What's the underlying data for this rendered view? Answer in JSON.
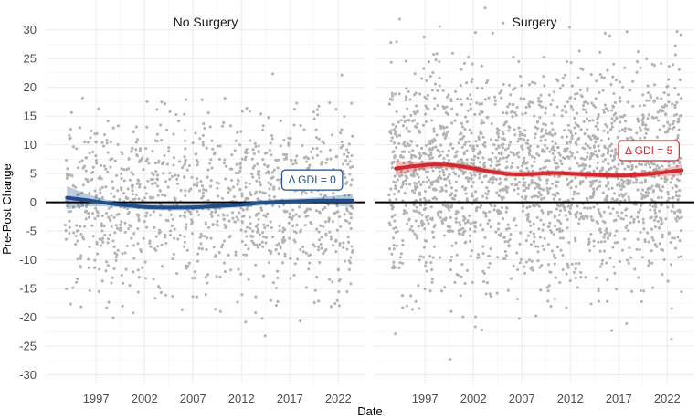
{
  "chart_data": {
    "type": "scatter",
    "xlabel": "Date",
    "ylabel": "Pre-Post Change",
    "x_ticks": [
      1997,
      2002,
      2007,
      2012,
      2017,
      2022
    ],
    "y_ticks": [
      -30,
      -25,
      -20,
      -15,
      -10,
      -5,
      0,
      5,
      10,
      15,
      20,
      25,
      30
    ],
    "xlim": [
      1991.8,
      2024.8
    ],
    "ylim": [
      -31.5,
      35.2
    ],
    "reference_line": 0,
    "colors": {
      "points": "#b3b3b3",
      "no_surgery": "#1f4e8c",
      "surgery": "#d1292e"
    },
    "panels": [
      {
        "title": "No Surgery",
        "annotation": "Δ GDI = 0",
        "annotation_position": {
          "x": 2019.3,
          "y": 3.9
        },
        "n_points": 1150,
        "x_range": [
          1993.8,
          2023.5
        ],
        "point_y_mean": 0,
        "point_y_sd": 8.0,
        "trend_x": [
          1994,
          1996,
          1998,
          2000,
          2002,
          2004,
          2006,
          2008,
          2010,
          2012,
          2014,
          2016,
          2018,
          2020,
          2022,
          2023.5
        ],
        "trend_y": [
          0.8,
          0.4,
          -0.1,
          -0.5,
          -0.8,
          -0.9,
          -0.9,
          -0.8,
          -0.6,
          -0.4,
          -0.1,
          0.1,
          0.2,
          0.3,
          0.3,
          0.3
        ],
        "band_halfwidth": [
          2.0,
          1.1,
          0.6,
          0.5,
          0.5,
          0.5,
          0.5,
          0.5,
          0.5,
          0.5,
          0.5,
          0.5,
          0.5,
          0.6,
          0.9,
          1.2
        ]
      },
      {
        "title": "Surgery",
        "annotation": "Δ GDI = 5",
        "annotation_position": {
          "x": 2020.1,
          "y": 9.0
        },
        "n_points": 2150,
        "x_range": [
          1993.3,
          2023.5
        ],
        "point_y_mean": 5,
        "point_y_sd": 9.5,
        "trend_x": [
          1994,
          1996,
          1998,
          2000,
          2002,
          2004,
          2006,
          2008,
          2010,
          2012,
          2014,
          2016,
          2018,
          2020,
          2022,
          2023.5
        ],
        "trend_y": [
          5.9,
          6.3,
          6.6,
          6.4,
          5.9,
          5.3,
          4.9,
          4.9,
          5.1,
          5.0,
          4.8,
          4.7,
          4.7,
          4.9,
          5.3,
          5.6
        ],
        "band_halfwidth": [
          1.3,
          0.8,
          0.6,
          0.5,
          0.5,
          0.5,
          0.5,
          0.5,
          0.5,
          0.5,
          0.5,
          0.5,
          0.5,
          0.5,
          0.7,
          1.0
        ]
      }
    ]
  }
}
